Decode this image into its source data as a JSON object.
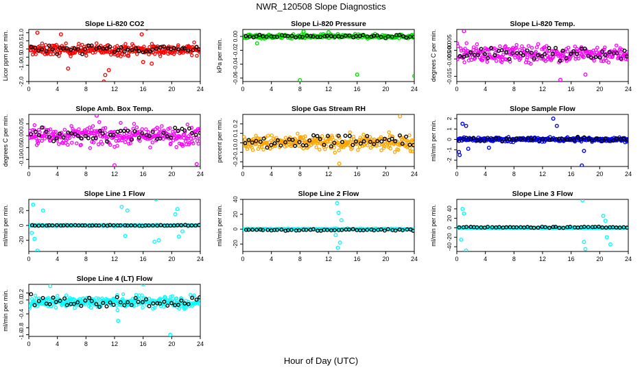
{
  "figure": {
    "title": "NWR_120508  Slope Diagnostics",
    "xlabel": "Hour of Day (UTC)"
  },
  "colors": {
    "red": "#ff0000",
    "green": "#00dd00",
    "magenta": "#ff00ff",
    "orange": "#ffa500",
    "blue": "#0000ff",
    "cyan": "#00ffff",
    "hourly": "#000000"
  },
  "chart_data": [
    {
      "type": "scatter",
      "title": "Slope Li-820 CO2",
      "ylabel": "Licor ppm per min.",
      "xlim": [
        0,
        24
      ],
      "xticks": [
        0,
        4,
        8,
        12,
        16,
        20,
        24
      ],
      "ylim": [
        -2.0,
        1.2
      ],
      "yticks": [
        1.0,
        0.5,
        0.0,
        -0.5,
        -1.0,
        -2.0
      ],
      "ytick_labels": [
        "1.0",
        "0.5",
        "0.0",
        "-0.5",
        "-1.0",
        "-2.0"
      ],
      "series_color": "red",
      "center": -0.05,
      "spread": 0.35,
      "outliers": [
        [
          1.2,
          1.0
        ],
        [
          4.5,
          0.9
        ],
        [
          5.5,
          -1.2
        ],
        [
          10.5,
          -2.0
        ],
        [
          10.7,
          -1.6
        ],
        [
          11.2,
          -1.3
        ],
        [
          16.5,
          1.25
        ],
        [
          15.8,
          0.9
        ],
        [
          17.2,
          -0.9
        ],
        [
          16.0,
          -0.8
        ]
      ],
      "hourly_center": 0.0,
      "hourly_spread": 0.25
    },
    {
      "type": "scatter",
      "title": "Slope Li-820 Pressure",
      "ylabel": "kPa per min.",
      "xlim": [
        0,
        24
      ],
      "xticks": [
        0,
        4,
        8,
        12,
        16,
        20,
        24
      ],
      "ylim": [
        -0.065,
        0.01
      ],
      "yticks": [
        0.0,
        -0.02,
        -0.04,
        -0.06
      ],
      "ytick_labels": [
        "0.00",
        "-0.02",
        "-0.04",
        "-0.06"
      ],
      "series_color": "green",
      "center": 0.0,
      "spread": 0.003,
      "outliers": [
        [
          8.0,
          -0.063
        ],
        [
          16.0,
          -0.055
        ],
        [
          24.0,
          -0.057
        ],
        [
          2.0,
          -0.01
        ],
        [
          8.5,
          0.007
        ],
        [
          12.0,
          0.006
        ]
      ],
      "hourly_center": 0.0,
      "hourly_spread": 0.002
    },
    {
      "type": "scatter",
      "title": "Slope Li-820 Temp.",
      "ylabel": "degrees C per min.",
      "xlim": [
        0,
        24
      ],
      "xticks": [
        0,
        4,
        8,
        12,
        16,
        20,
        24
      ],
      "ylim": [
        -0.018,
        0.012
      ],
      "yticks": [
        0.005,
        0.0,
        -0.005,
        -0.015
      ],
      "ytick_labels": [
        "0.005",
        "0.000",
        "-0.005",
        "-0.015"
      ],
      "series_color": "magenta",
      "center": -0.002,
      "spread": 0.005,
      "outliers": [
        [
          14.5,
          -0.017
        ],
        [
          18.0,
          -0.014
        ],
        [
          1.0,
          0.011
        ]
      ],
      "hourly_center": -0.002,
      "hourly_spread": 0.004
    },
    {
      "type": "scatter",
      "title": "Slope Amb. Box Temp.",
      "ylabel": "degrees C per min.",
      "xlim": [
        0,
        24
      ],
      "xticks": [
        0,
        4,
        8,
        12,
        16,
        20,
        24
      ],
      "ylim": [
        -0.13,
        0.09
      ],
      "yticks": [
        0.05,
        0.0,
        -0.05,
        -0.1
      ],
      "ytick_labels": [
        "0.05",
        "0.00",
        "-0.05",
        "-0.10"
      ],
      "series_color": "magenta",
      "center": 0.0,
      "spread": 0.04,
      "outliers": [
        [
          12.0,
          -0.125
        ],
        [
          9.5,
          0.085
        ],
        [
          23.5,
          -0.12
        ]
      ],
      "hourly_center": 0.01,
      "hourly_spread": 0.03
    },
    {
      "type": "scatter",
      "title": "Slope Gas Stream RH",
      "ylabel": "percent per min.",
      "xlim": [
        0,
        24
      ],
      "xticks": [
        0,
        4,
        8,
        12,
        16,
        20,
        24
      ],
      "ylim": [
        -0.25,
        0.3
      ],
      "yticks": [
        0.2,
        0.1,
        0.0,
        -0.1,
        -0.2
      ],
      "ytick_labels": [
        "0.2",
        "0.1",
        "0.0",
        "-0.1",
        "-0.2"
      ],
      "series_color": "orange",
      "center": 0.0,
      "spread": 0.08,
      "outliers": [
        [
          22.0,
          0.28
        ],
        [
          13.5,
          -0.22
        ]
      ],
      "hourly_center": 0.02,
      "hourly_spread": 0.07
    },
    {
      "type": "scatter",
      "title": "Slope Sample Flow",
      "ylabel": "ml/min per min.",
      "xlim": [
        0,
        24
      ],
      "xticks": [
        0,
        4,
        8,
        12,
        16,
        20,
        24
      ],
      "ylim": [
        -2.6,
        2.4
      ],
      "yticks": [
        2,
        1,
        0,
        -1,
        -2
      ],
      "ytick_labels": [
        "2",
        "1",
        "0",
        "-1",
        "-2"
      ],
      "series_color": "blue",
      "center": 0.0,
      "spread": 0.22,
      "outliers": [
        [
          0.3,
          -1.2
        ],
        [
          0.4,
          -1.5
        ],
        [
          0.8,
          1.5
        ],
        [
          1.3,
          1.3
        ],
        [
          1.6,
          -0.9
        ],
        [
          4.5,
          -0.8
        ],
        [
          13.5,
          2.0
        ],
        [
          14.0,
          1.3
        ],
        [
          17.5,
          -2.5
        ],
        [
          17.8,
          -1.1
        ]
      ],
      "hourly_center": 0.0,
      "hourly_spread": 0.18
    },
    {
      "type": "scatter",
      "title": "Slope Line 1 Flow",
      "ylabel": "ml/min per min.",
      "xlim": [
        0,
        24
      ],
      "xticks": [
        0,
        4,
        8,
        12,
        16,
        20,
        24
      ],
      "ylim": [
        -35,
        35
      ],
      "yticks": [
        20,
        0,
        -20
      ],
      "ytick_labels": [
        "20",
        "0",
        "-20"
      ],
      "series_color": "cyan",
      "center": 0.0,
      "spread": 0.8,
      "outliers": [
        [
          0.6,
          28
        ],
        [
          0.4,
          -10
        ],
        [
          0.8,
          -18
        ],
        [
          1.2,
          -34
        ],
        [
          2.0,
          20
        ],
        [
          13.0,
          25
        ],
        [
          13.5,
          -14
        ],
        [
          13.8,
          20
        ],
        [
          17.8,
          35
        ],
        [
          18.2,
          -20
        ],
        [
          17.6,
          -22
        ],
        [
          20.5,
          15
        ],
        [
          21.0,
          -15
        ],
        [
          20.8,
          22
        ],
        [
          21.5,
          -8
        ]
      ],
      "hourly_center": 0.0,
      "hourly_spread": 0.6
    },
    {
      "type": "scatter",
      "title": "Slope Line 2 Flow",
      "ylabel": "ml/min per min.",
      "xlim": [
        0,
        24
      ],
      "xticks": [
        0,
        4,
        8,
        12,
        16,
        20,
        24
      ],
      "ylim": [
        -30,
        40
      ],
      "yticks": [
        40,
        20,
        0,
        -20
      ],
      "ytick_labels": [
        "40",
        "20",
        "0",
        "-20"
      ],
      "series_color": "cyan",
      "center": 0.0,
      "spread": 0.8,
      "outliers": [
        [
          13.2,
          35
        ],
        [
          13.4,
          22
        ],
        [
          13.3,
          -25
        ],
        [
          13.6,
          -18
        ],
        [
          13.8,
          12
        ],
        [
          13.0,
          -8
        ]
      ],
      "hourly_center": -1.0,
      "hourly_spread": 1.0
    },
    {
      "type": "scatter",
      "title": "Slope Line 3 Flow",
      "ylabel": "ml/min per min.",
      "xlim": [
        0,
        24
      ],
      "xticks": [
        0,
        4,
        8,
        12,
        16,
        20,
        24
      ],
      "ylim": [
        -50,
        60
      ],
      "yticks": [
        40,
        20,
        0,
        -20,
        -40
      ],
      "ytick_labels": [
        "40",
        "20",
        "0",
        "-20",
        "-40"
      ],
      "series_color": "cyan",
      "center": 0.0,
      "spread": 1.0,
      "outliers": [
        [
          0.8,
          40
        ],
        [
          1.0,
          30
        ],
        [
          1.3,
          -48
        ],
        [
          0.6,
          -25
        ],
        [
          17.6,
          58
        ],
        [
          18.0,
          -45
        ],
        [
          17.8,
          -30
        ],
        [
          20.5,
          25
        ],
        [
          21.0,
          -20
        ],
        [
          20.8,
          15
        ],
        [
          21.5,
          -35
        ]
      ],
      "hourly_center": 1.0,
      "hourly_spread": 1.2
    },
    {
      "type": "scatter",
      "title": "Slope Line 4 (LT) Flow",
      "ylabel": "ml/min per min.",
      "xlim": [
        0,
        24
      ],
      "xticks": [
        0,
        4,
        8,
        12,
        16,
        20,
        24
      ],
      "ylim": [
        -1.05,
        0.45
      ],
      "yticks": [
        0.2,
        0.0,
        -0.4,
        -0.8,
        -1.0
      ],
      "ytick_labels": [
        "0.2",
        "0.0",
        "-0.4",
        "-0.8",
        "-1.0"
      ],
      "series_color": "cyan",
      "center": -0.05,
      "spread": 0.18,
      "outliers": [
        [
          19.8,
          -1.0
        ],
        [
          3.0,
          0.4
        ],
        [
          16.0,
          0.45
        ],
        [
          12.5,
          -0.6
        ]
      ],
      "hourly_center": -0.05,
      "hourly_spread": 0.15
    }
  ]
}
